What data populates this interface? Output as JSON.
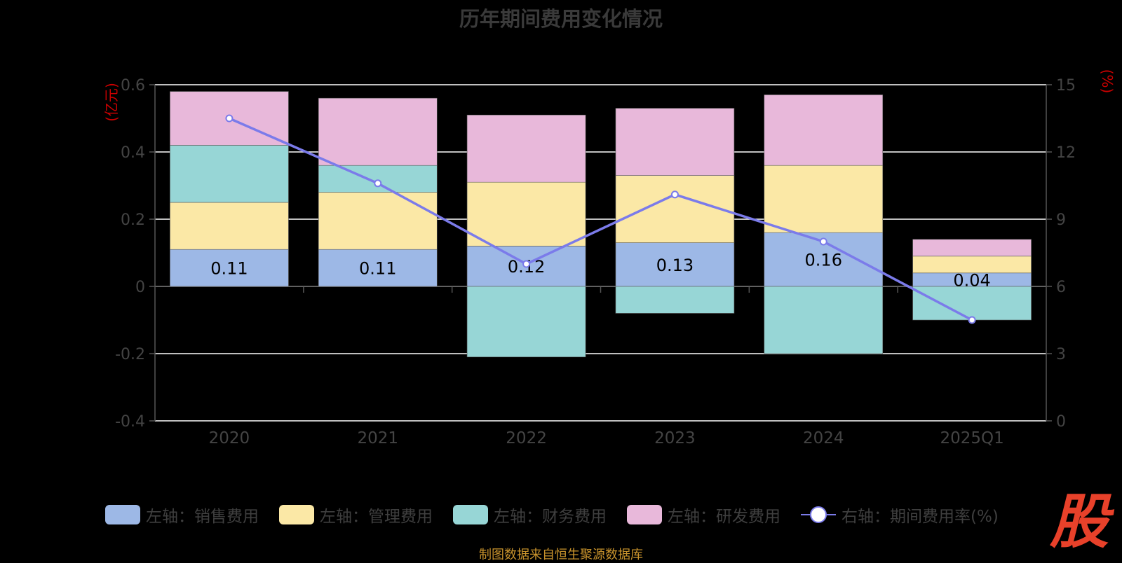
{
  "title": "历年期间费用变化情况",
  "source": "制图数据来自恒生聚源数据库",
  "logo_text": "股",
  "colors": {
    "sales": "#9db8e6",
    "admin": "#fbe8a6",
    "finance": "#97d6d6",
    "rd": "#e8b8da",
    "line": "#7b7bea",
    "axis_unit": "#cc0000",
    "grid": "#ffffff",
    "axis_text": "#444444"
  },
  "chart_data": {
    "type": "bar",
    "stacked": true,
    "title": "历年期间费用变化情况",
    "categories": [
      "2020",
      "2021",
      "2022",
      "2023",
      "2024",
      "2025Q1"
    ],
    "y_left": {
      "label": "(亿元)",
      "min": -0.4,
      "max": 0.6,
      "ticks": [
        "0.6",
        "0.4",
        "0.2",
        "0",
        "-0.2",
        "-0.4"
      ]
    },
    "y_right": {
      "label": "(%)",
      "min": 0,
      "max": 15,
      "ticks": [
        "15",
        "12",
        "9",
        "6",
        "3",
        "0"
      ]
    },
    "series": [
      {
        "name": "左轴：销售费用",
        "key": "sales",
        "values": [
          0.11,
          0.11,
          0.12,
          0.13,
          0.16,
          0.04
        ],
        "data_labels": [
          "0.11",
          "0.11",
          "0.12",
          "0.13",
          "0.16",
          "0.04"
        ]
      },
      {
        "name": "左轴：管理费用",
        "key": "admin",
        "values": [
          0.14,
          0.17,
          0.19,
          0.2,
          0.2,
          0.05
        ]
      },
      {
        "name": "左轴：财务费用",
        "key": "finance",
        "values": [
          0.17,
          0.08,
          -0.21,
          -0.08,
          -0.2,
          -0.1
        ]
      },
      {
        "name": "左轴：研发费用",
        "key": "rd",
        "values": [
          0.16,
          0.2,
          0.2,
          0.2,
          0.21,
          0.05
        ]
      },
      {
        "name": "右轴：期间费用率(%)",
        "key": "line",
        "axis": "right",
        "type": "line",
        "values": [
          13.5,
          10.6,
          7.0,
          10.1,
          8.0,
          4.5
        ]
      }
    ],
    "legend_position": "bottom",
    "grid": true
  }
}
